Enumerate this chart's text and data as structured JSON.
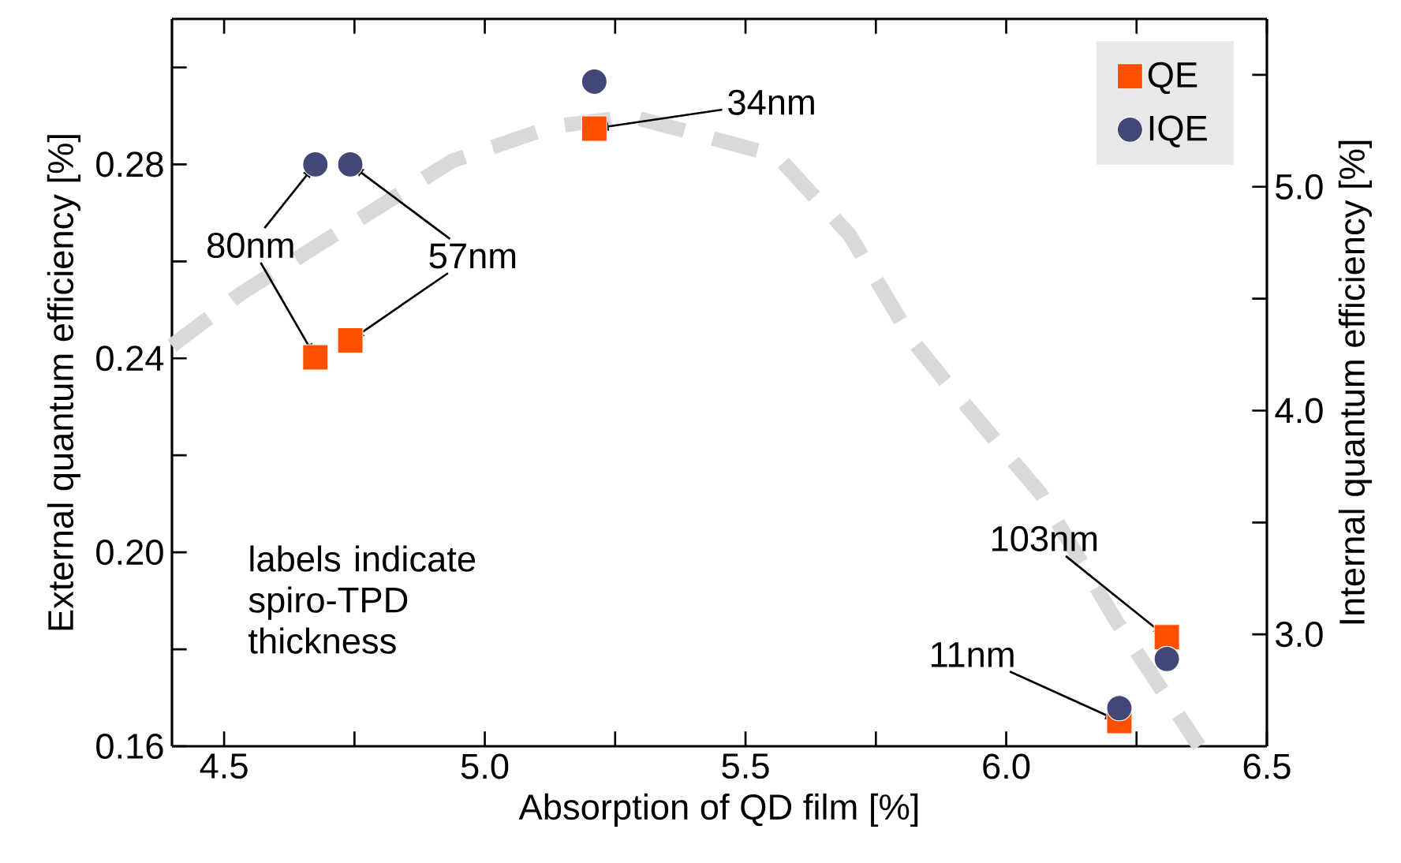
{
  "chart_data": {
    "type": "scatter",
    "xlabel": "Absorption of QD film [%]",
    "ylabel": "External quantum efficiency [%]",
    "y2label": "Internal quantum efficiency [%]",
    "xlim": [
      4.4,
      6.5
    ],
    "ylim": [
      0.16,
      0.31
    ],
    "y2lim": [
      2.5,
      5.75
    ],
    "xticks": [
      4.5,
      {
        "value": 4.75,
        "label": null
      },
      {
        "value": 5,
        "label": "5.0"
      },
      {
        "value": 5.25,
        "label": null
      },
      5.5,
      {
        "value": 5.75,
        "label": null
      },
      {
        "value": 6,
        "label": "6.0"
      },
      {
        "value": 6.25,
        "label": null
      },
      6.5
    ],
    "yticks": [
      0.16,
      {
        "value": 0.18,
        "label": null
      },
      {
        "value": 0.2,
        "label": "0.20"
      },
      {
        "value": 0.22,
        "label": null
      },
      0.24,
      {
        "value": 0.26,
        "label": null
      },
      0.28,
      {
        "value": 0.3,
        "label": null
      }
    ],
    "y2ticks": [
      {
        "value": 3,
        "label": "3.0"
      },
      {
        "value": 3.5,
        "label": null
      },
      {
        "value": 4,
        "label": "4.0"
      },
      {
        "value": 4.5,
        "label": null
      },
      {
        "value": 5,
        "label": "5.0"
      },
      {
        "value": 5.5,
        "label": null
      }
    ],
    "grid": false,
    "legend": "top right",
    "series": [
      {
        "name": "QE",
        "marker": "square",
        "color": "#fe5000",
        "x": [
          4.675,
          4.742,
          5.21,
          6.217,
          6.308
        ],
        "values": [
          0.2402,
          0.2437,
          0.2874,
          0.1652,
          0.1825
        ]
      },
      {
        "name": "IQE",
        "marker": "circle",
        "color": "#434778",
        "axis": "y2",
        "x": [
          4.675,
          4.742,
          5.21,
          6.217,
          6.308
        ],
        "values": [
          5.1,
          5.1,
          5.47,
          2.67,
          2.89
        ]
      },
      {
        "type": "line",
        "marker": "none",
        "line_style": "dashed",
        "color": "#d9d9d9",
        "x": [
          4.4,
          4.534,
          4.776,
          4.937,
          5.13,
          5.28,
          5.56,
          5.7,
          5.82,
          5.88,
          6.066,
          6.21,
          6.37
        ],
        "values": [
          0.2426,
          0.2535,
          0.2698,
          0.2807,
          0.2878,
          0.2899,
          0.2818,
          0.2654,
          0.2437,
          0.2357,
          0.2121,
          0.186,
          0.16
        ]
      }
    ],
    "annotations": [
      {
        "text": "80nm",
        "x": 4.675,
        "y": 0.2402
      },
      {
        "text": "57nm",
        "x": 4.742,
        "y": 0.2437
      },
      {
        "text": "34nm",
        "x": 5.21,
        "y": 0.2874
      },
      {
        "text": "103nm",
        "x": 6.308,
        "y": 0.1825
      },
      {
        "text": "11nm",
        "x": 6.217,
        "y": 0.1652
      },
      "labels indicate spiro-TPD thickness"
    ]
  }
}
